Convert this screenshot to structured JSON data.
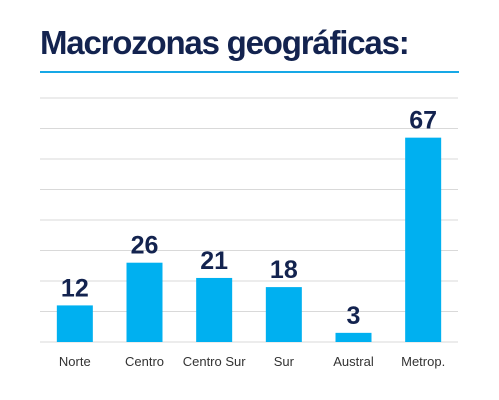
{
  "header": {
    "title": "Macrozonas geográficas:"
  },
  "colors": {
    "bar": "#00b0f0",
    "title": "#13234f",
    "rule": "#17a8e6",
    "grid": "#d9d9d9",
    "value_label": "#13234f",
    "tick_label": "#333333"
  },
  "chart_data": {
    "type": "bar",
    "title": "Macrozonas geográficas:",
    "categories": [
      "Norte",
      "Centro",
      "Centro Sur",
      "Sur",
      "Austral",
      "Metrop."
    ],
    "values": [
      12,
      26,
      21,
      18,
      3,
      67
    ],
    "xlabel": "",
    "ylabel": "",
    "ylim": [
      0,
      80
    ],
    "grid": true,
    "legend": "none",
    "data_labels": true
  }
}
